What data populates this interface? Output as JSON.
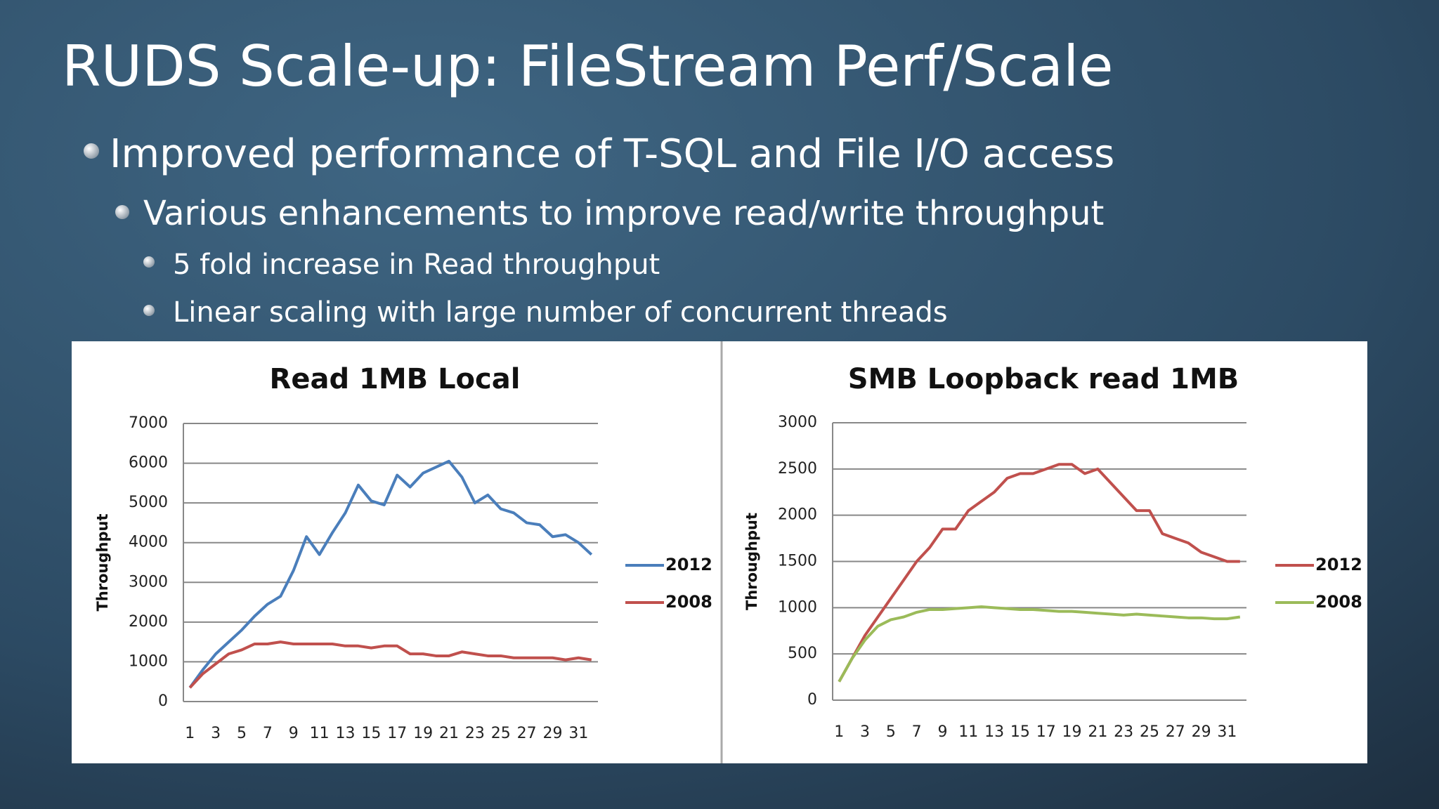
{
  "title": "RUDS Scale-up: FileStream Perf/Scale",
  "bullets": [
    {
      "level": 1,
      "text": "Improved performance of T-SQL and File I/O access"
    },
    {
      "level": 2,
      "text": "Various enhancements to improve read/write throughput"
    },
    {
      "level": 3,
      "text": "5 fold increase in Read throughput"
    },
    {
      "level": 3,
      "text": "Linear scaling with large number of concurrent threads"
    }
  ],
  "chart_data": [
    {
      "type": "line",
      "title": "Read 1MB Local",
      "y_label": "Throughput",
      "categories": [
        "1",
        null,
        "3",
        null,
        "5",
        null,
        "7",
        null,
        "9",
        null,
        "11",
        null,
        "13",
        null,
        "15",
        null,
        "17",
        null,
        "19",
        null,
        "21",
        null,
        "23",
        null,
        "25",
        null,
        "27",
        null,
        "29",
        null,
        "31",
        null
      ],
      "ylim": [
        0,
        7000
      ],
      "yticks": [
        0,
        1000,
        2000,
        3000,
        4000,
        5000,
        6000,
        7000
      ],
      "grid": true,
      "legend": "right",
      "series": [
        {
          "name": "2012",
          "color": "#4a7ebb",
          "values": [
            350,
            800,
            1200,
            1500,
            1800,
            2150,
            2450,
            2650,
            3300,
            4150,
            3700,
            4250,
            4750,
            5450,
            5050,
            4950,
            5700,
            5400,
            5750,
            5900,
            6050,
            5650,
            5000,
            5200,
            4850,
            4750,
            4500,
            4450,
            4150,
            4200,
            4000,
            3700
          ]
        },
        {
          "name": "2008",
          "color": "#c0504d",
          "values": [
            350,
            700,
            950,
            1200,
            1300,
            1450,
            1450,
            1500,
            1450,
            1450,
            1450,
            1450,
            1400,
            1400,
            1350,
            1400,
            1400,
            1200,
            1200,
            1150,
            1150,
            1250,
            1200,
            1150,
            1150,
            1100,
            1100,
            1100,
            1100,
            1050,
            1100,
            1050
          ]
        }
      ]
    },
    {
      "type": "line",
      "title": "SMB Loopback read 1MB",
      "y_label": "Throughput",
      "categories": [
        "1",
        null,
        "3",
        null,
        "5",
        null,
        "7",
        null,
        "9",
        null,
        "11",
        null,
        "13",
        null,
        "15",
        null,
        "17",
        null,
        "19",
        null,
        "21",
        null,
        "23",
        null,
        "25",
        null,
        "27",
        null,
        "29",
        null,
        "31",
        null
      ],
      "ylim": [
        0,
        3000
      ],
      "yticks": [
        0,
        500,
        1000,
        1500,
        2000,
        2500,
        3000
      ],
      "grid": true,
      "legend": "right",
      "series": [
        {
          "name": "2012",
          "color": "#c0504d",
          "values": [
            200,
            450,
            700,
            900,
            1100,
            1300,
            1500,
            1650,
            1850,
            1850,
            2050,
            2150,
            2250,
            2400,
            2450,
            2450,
            2500,
            2550,
            2550,
            2450,
            2500,
            2350,
            2200,
            2050,
            2050,
            1800,
            1750,
            1700,
            1600,
            1550,
            1500,
            1500
          ]
        },
        {
          "name": "2008",
          "color": "#9bbb59",
          "values": [
            200,
            450,
            650,
            800,
            870,
            900,
            950,
            980,
            980,
            990,
            1000,
            1010,
            1000,
            990,
            980,
            980,
            970,
            960,
            960,
            950,
            940,
            930,
            920,
            930,
            920,
            910,
            900,
            890,
            890,
            880,
            880,
            900
          ]
        }
      ]
    }
  ]
}
